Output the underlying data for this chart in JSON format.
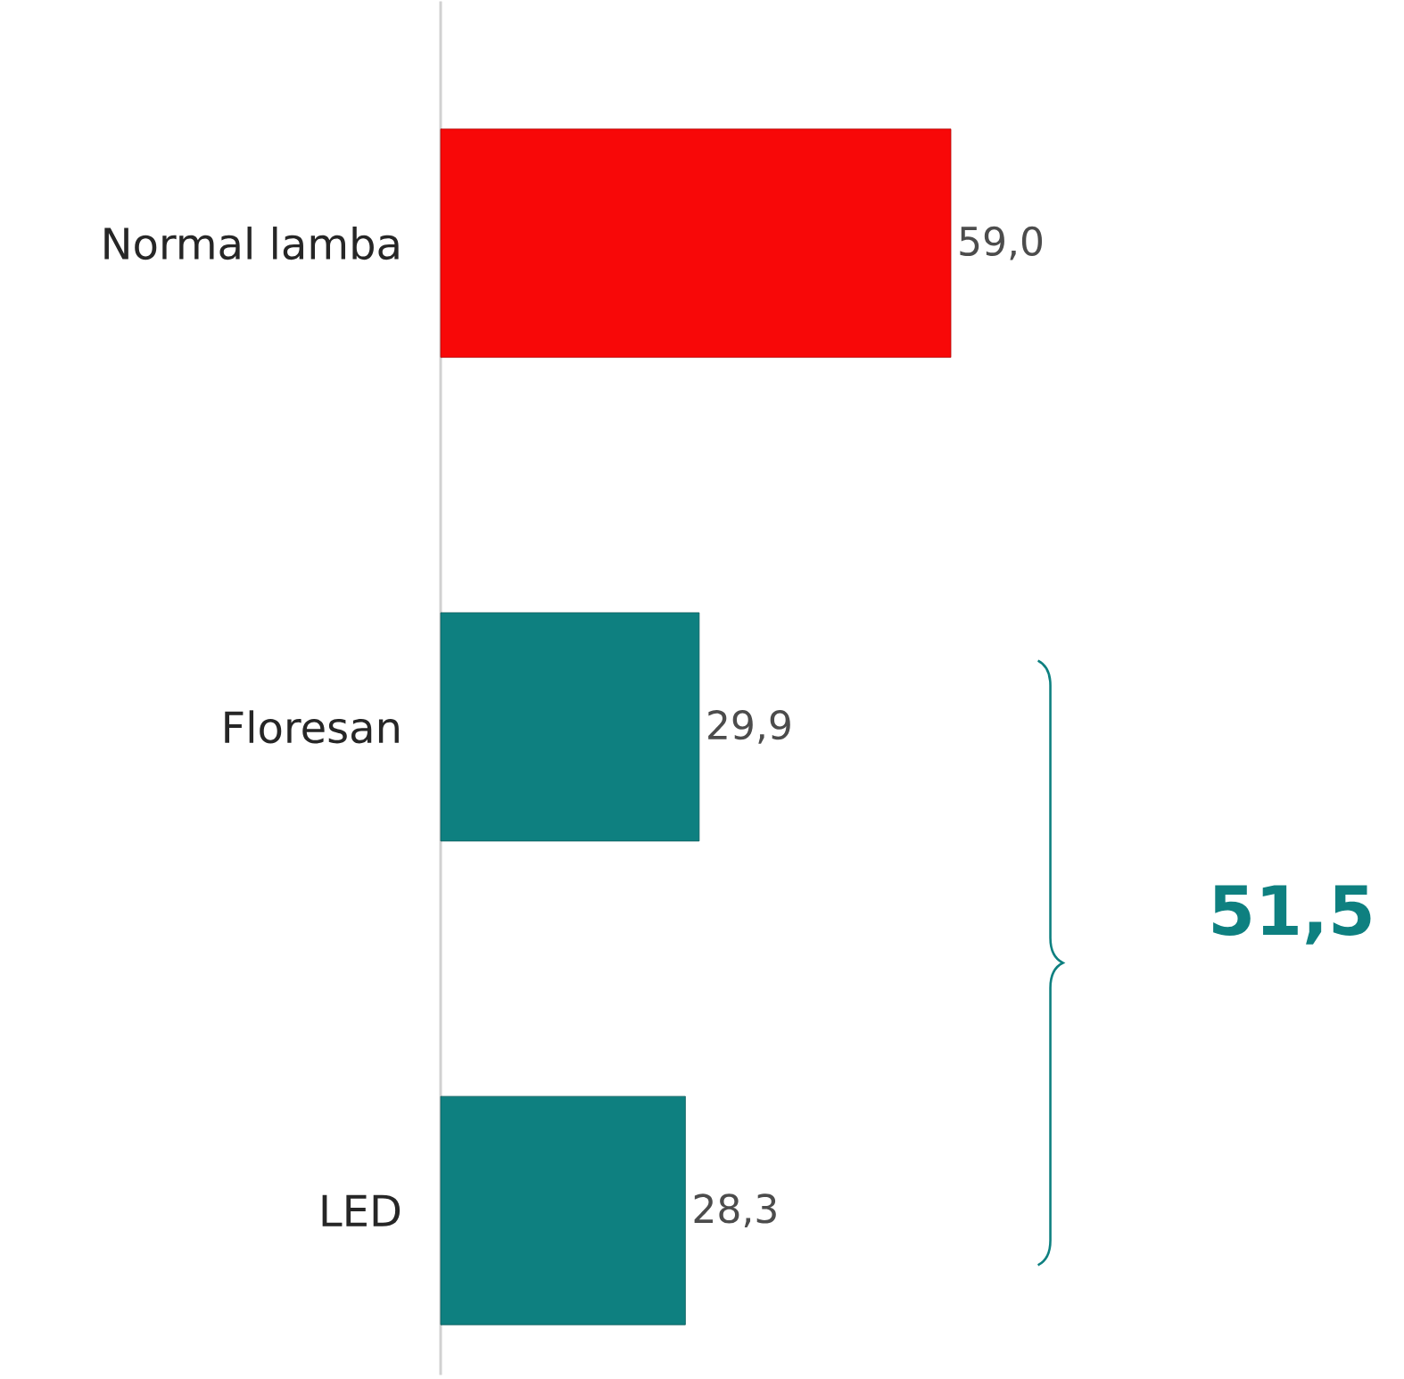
{
  "chart_data": {
    "type": "bar",
    "orientation": "horizontal",
    "categories": [
      "Normal lamba",
      "Floresan",
      "LED"
    ],
    "values": [
      59.0,
      29.9,
      28.3
    ],
    "value_labels": [
      "59,0",
      "29,9",
      "28,3"
    ],
    "colors": [
      "#f80808",
      "#0e8080",
      "#0e8080"
    ],
    "tick_labels": "y",
    "annotations": [
      "51,5"
    ]
  }
}
